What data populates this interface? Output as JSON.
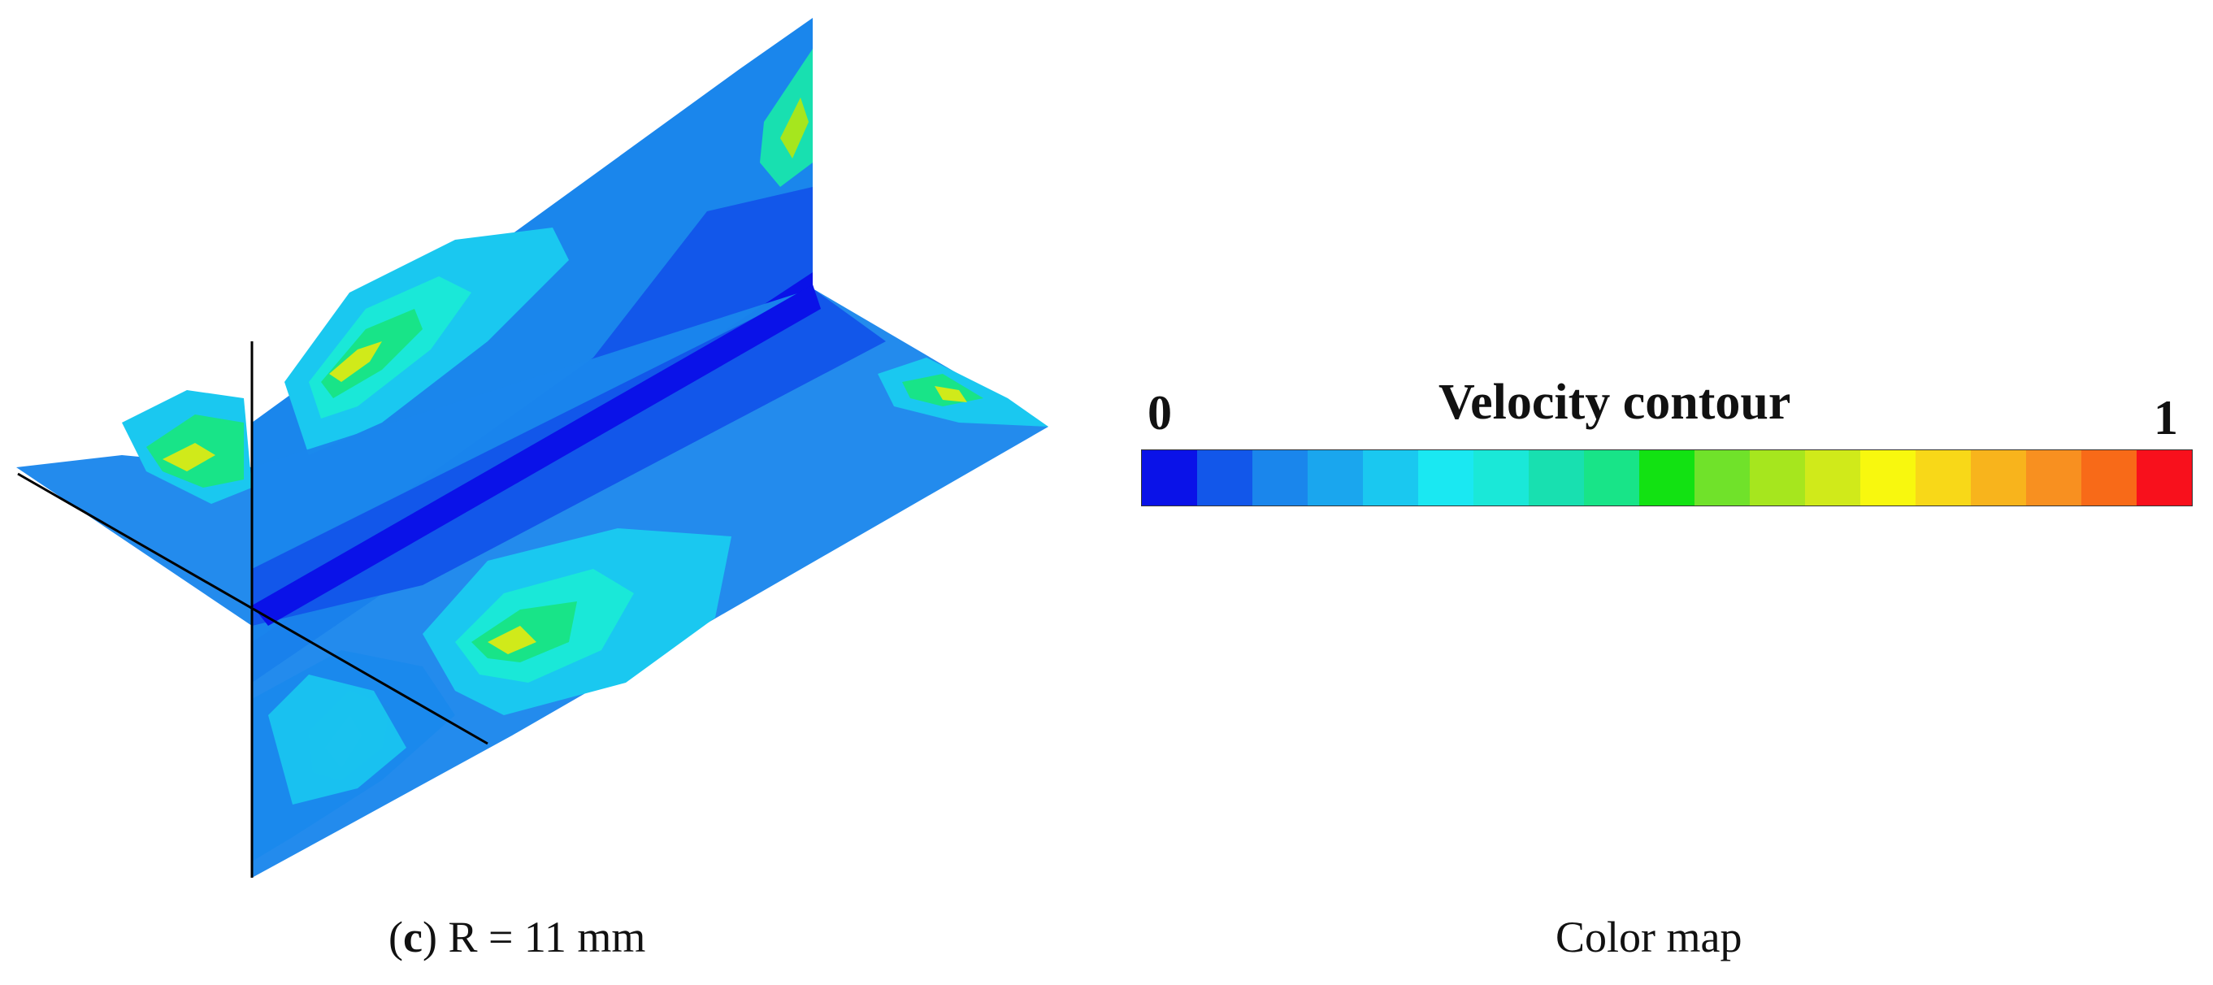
{
  "figure": {
    "caption_panel": "c",
    "caption_rest": " R = 11 mm",
    "caption_colormap": "Color map"
  },
  "colorbar": {
    "title": "Velocity contour",
    "min_label": "0",
    "max_label": "1",
    "colors": [
      "#0a12e8",
      "#1257ea",
      "#1a86ec",
      "#1aa6ee",
      "#1ac8f0",
      "#1ae8f2",
      "#1ae8d8",
      "#18e0b0",
      "#18e488",
      "#12e212",
      "#70e22a",
      "#a6e61e",
      "#d0ea1a",
      "#f8f80e",
      "#f8d818",
      "#f8b41c",
      "#f89020",
      "#f86a18",
      "#f8101c"
    ]
  },
  "contour_palette": {
    "core": "#0a12e8",
    "dark": "#1257ea",
    "mid": "#1a86ec",
    "light": "#1aa6ee",
    "cyan": "#1ac8f0",
    "aqua": "#1ae8f2",
    "teal": "#1ae8d8",
    "seagreen": "#18e0b0",
    "green": "#18e488",
    "lime": "#70e22a",
    "yellowgreen": "#a6e61e",
    "yellow": "#d0ea1a"
  }
}
